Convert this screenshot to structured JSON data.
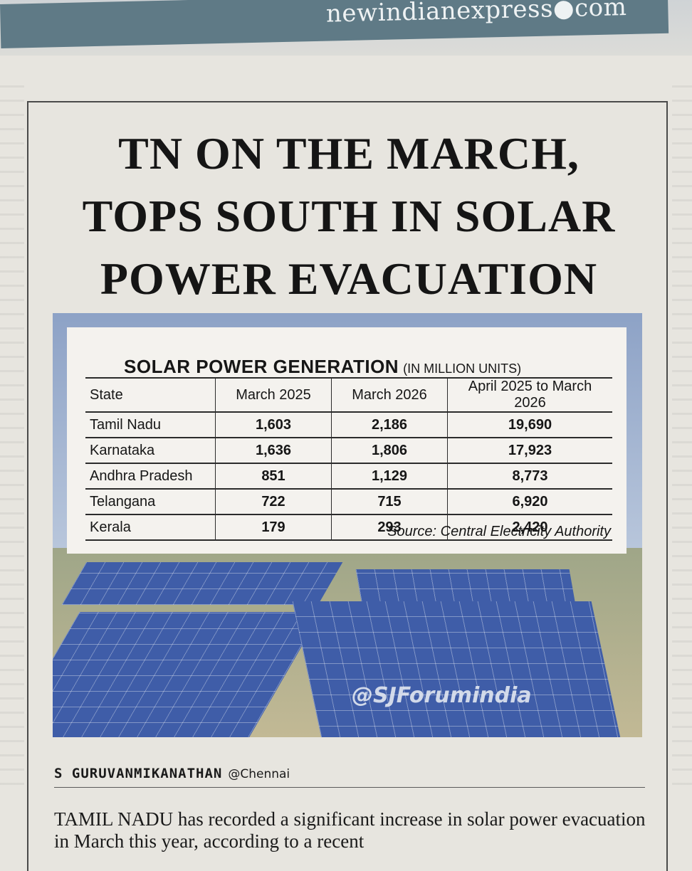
{
  "masthead": {
    "site": "newindianexpress●com"
  },
  "headline": {
    "line1": "TN ON THE MARCH,",
    "line2": "TOPS SOUTH IN SOLAR",
    "line3": "POWER EVACUATION"
  },
  "table": {
    "title": "SOLAR POWER GENERATION",
    "unit": "(IN MILLION UNITS)",
    "headers": [
      "State",
      "March 2025",
      "March 2026",
      "April 2025 to March 2026"
    ],
    "rows": [
      [
        "Tamil Nadu",
        "1,603",
        "2,186",
        "19,690"
      ],
      [
        "Karnataka",
        "1,636",
        "1,806",
        "17,923"
      ],
      [
        "Andhra Pradesh",
        "851",
        "1,129",
        "8,773"
      ],
      [
        "Telangana",
        "722",
        "715",
        "6,920"
      ],
      [
        "Kerala",
        "179",
        "293",
        "2,420"
      ]
    ],
    "source": "Source: Central Electricity Authority"
  },
  "photo": {
    "watermark": "@SJForumindia"
  },
  "byline": {
    "name": "S GURUVANMIKANATHAN",
    "location": "@Chennai"
  },
  "body": {
    "lead": "TAMIL NADU",
    "text": " has recorded a significant increase in solar power evacuation in March this year, according to a recent"
  }
}
